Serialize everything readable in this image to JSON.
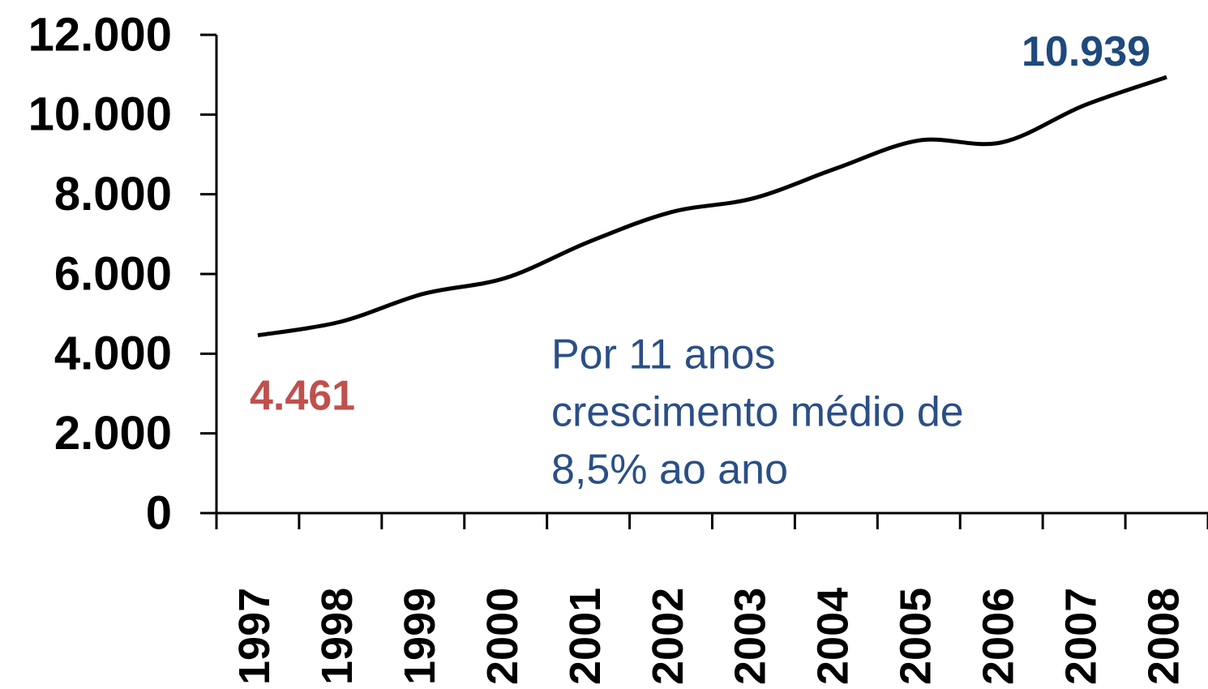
{
  "chart_data": {
    "type": "line",
    "categories": [
      "1997",
      "1998",
      "1999",
      "2000",
      "2001",
      "2002",
      "2003",
      "2004",
      "2005",
      "2006",
      "2007",
      "2008"
    ],
    "series": [
      {
        "color": "#000000",
        "values": [
          4461,
          4800,
          5500,
          5900,
          6800,
          7550,
          7900,
          8650,
          9350,
          9300,
          10230,
          10939
        ],
        "value_labels": [
          "4.461",
          null,
          null,
          null,
          null,
          null,
          null,
          null,
          null,
          null,
          null,
          "10.939"
        ],
        "value_label_colors": [
          "#c0504d",
          null,
          null,
          null,
          null,
          null,
          null,
          null,
          null,
          null,
          null,
          "#1f497d"
        ]
      }
    ],
    "ylim": [
      0,
      12000
    ],
    "yticks": [
      0,
      {
        "value": 2000,
        "label": "2.000"
      },
      {
        "value": 4000,
        "label": "4.000"
      },
      {
        "value": 6000,
        "label": "6.000"
      },
      {
        "value": 8000,
        "label": "8.000"
      },
      {
        "value": 10000,
        "label": "10.000"
      },
      {
        "value": 12000,
        "label": "12.000"
      }
    ],
    "annotation": [
      "Por 11 anos",
      "crescimento médio de",
      "8,5% ao ano"
    ],
    "annotation_color": "#2a4f86",
    "grid": false
  }
}
